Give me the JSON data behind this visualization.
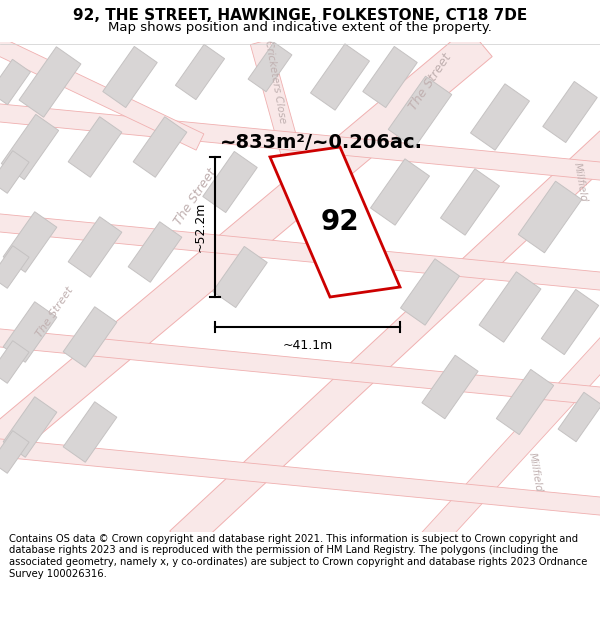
{
  "title": "92, THE STREET, HAWKINGE, FOLKESTONE, CT18 7DE",
  "subtitle": "Map shows position and indicative extent of the property.",
  "footer": "Contains OS data © Crown copyright and database right 2021. This information is subject to Crown copyright and database rights 2023 and is reproduced with the permission of HM Land Registry. The polygons (including the associated geometry, namely x, y co-ordinates) are subject to Crown copyright and database rights 2023 Ordnance Survey 100026316.",
  "area_label": "~833m²/~0.206ac.",
  "property_number": "92",
  "dim_width": "~41.1m",
  "dim_height": "~52.2m",
  "map_bg": "#f7f6f6",
  "road_line_color": "#f0b0b0",
  "road_fill_color": "#f9e8e8",
  "building_color": "#d8d5d5",
  "building_edge": "#c5c2c2",
  "property_fill": "white",
  "property_edge": "#cc0000",
  "title_fontsize": 11,
  "subtitle_fontsize": 9.5,
  "footer_fontsize": 7.2,
  "street_label_color": "#c0b0b0",
  "dim_label_fontsize": 9,
  "area_label_fontsize": 14,
  "prop_label_fontsize": 20
}
